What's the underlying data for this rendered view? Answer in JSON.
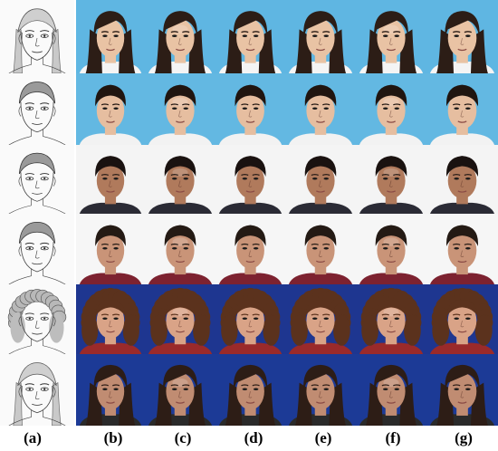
{
  "figure": {
    "column_labels": [
      "(a)",
      "(b)",
      "(c)",
      "(d)",
      "(e)",
      "(f)",
      "(g)"
    ]
  },
  "rows": [
    {
      "subject": "asian-woman",
      "background": "#5fb6e2",
      "skin": "#e9c3a4",
      "hair": "#2c1d16",
      "clothing": "#f4f4f4",
      "hair_style": "long-straight"
    },
    {
      "subject": "asian-man",
      "background": "#63b8e2",
      "skin": "#e6bea0",
      "hair": "#201510",
      "clothing": "#f2f2f2",
      "hair_style": "short"
    },
    {
      "subject": "man-1",
      "background": "#f4f4f4",
      "skin": "#b07a5c",
      "hair": "#1a1210",
      "clothing": "#2b2b35",
      "hair_style": "short"
    },
    {
      "subject": "man-2",
      "background": "#f6f6f6",
      "skin": "#c99478",
      "hair": "#241a14",
      "clothing": "#7d2230",
      "hair_style": "short"
    },
    {
      "subject": "woman-curly",
      "background": "#1e3690",
      "skin": "#d9a387",
      "hair": "#5b321d",
      "clothing": "#9a2a2a",
      "hair_style": "curly"
    },
    {
      "subject": "woman-dark",
      "background": "#1c3a96",
      "skin": "#c08c72",
      "hair": "#2d1d16",
      "clothing": "#2a2a2a",
      "hair_style": "long-straight"
    }
  ]
}
